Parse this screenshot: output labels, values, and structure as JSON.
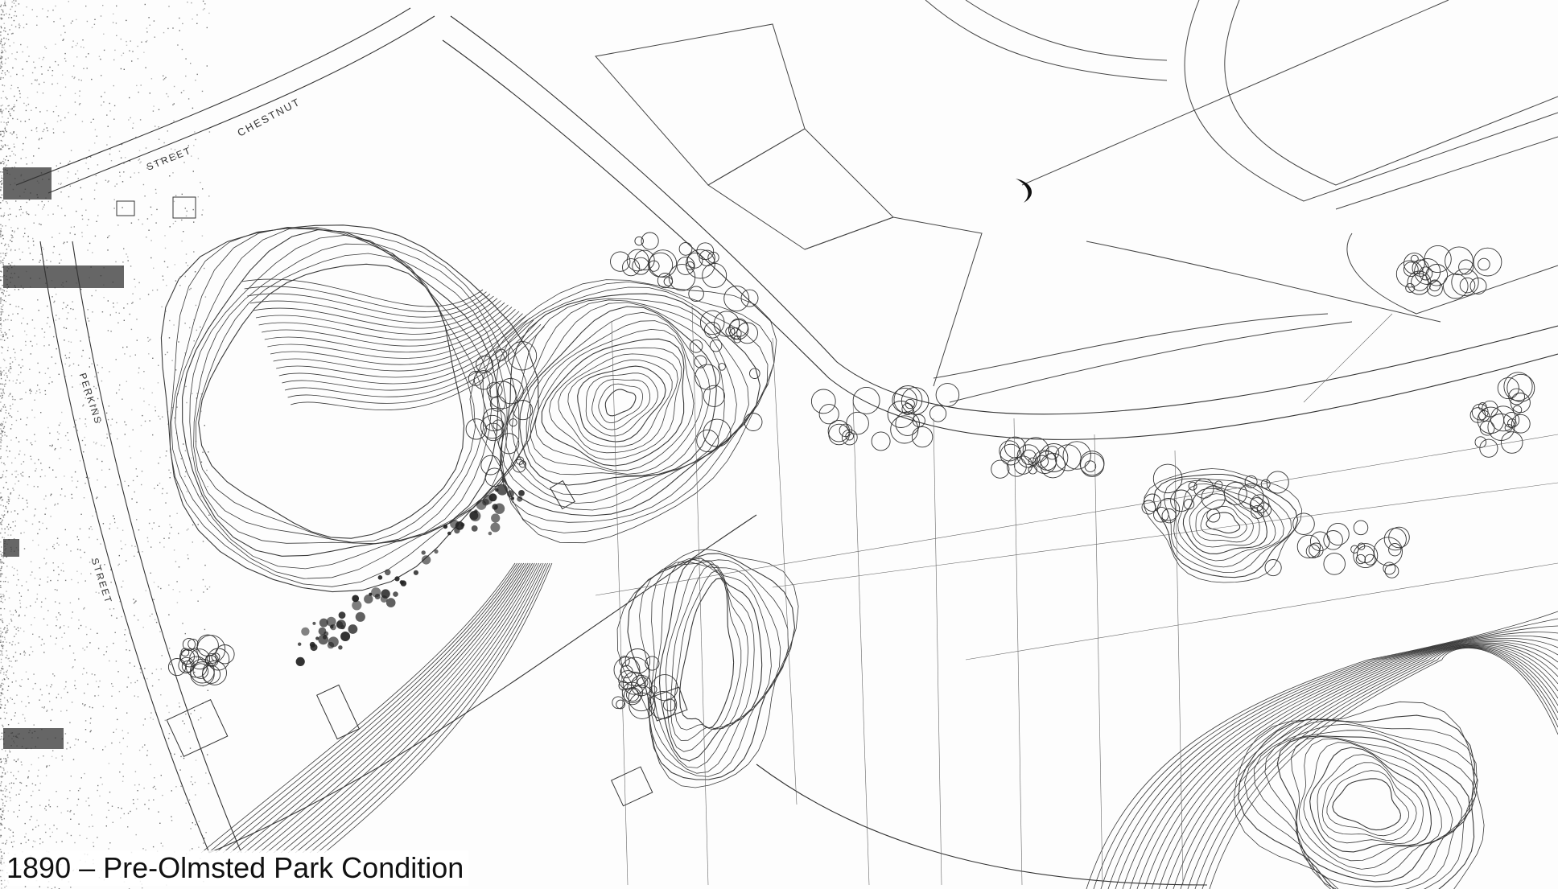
{
  "caption": "1890 – Pre-Olmsted Park Condition",
  "map_labels": {
    "street_top": "CHESTNUT",
    "street_top_2": "STREET",
    "street_left": "PERKINS",
    "street_left_2": "STREET"
  },
  "colors": {
    "ink": "#2a2a2a",
    "faint_ink": "#8a8a8a",
    "paper": "#fdfdfd",
    "noise": "#3a3a3a"
  }
}
